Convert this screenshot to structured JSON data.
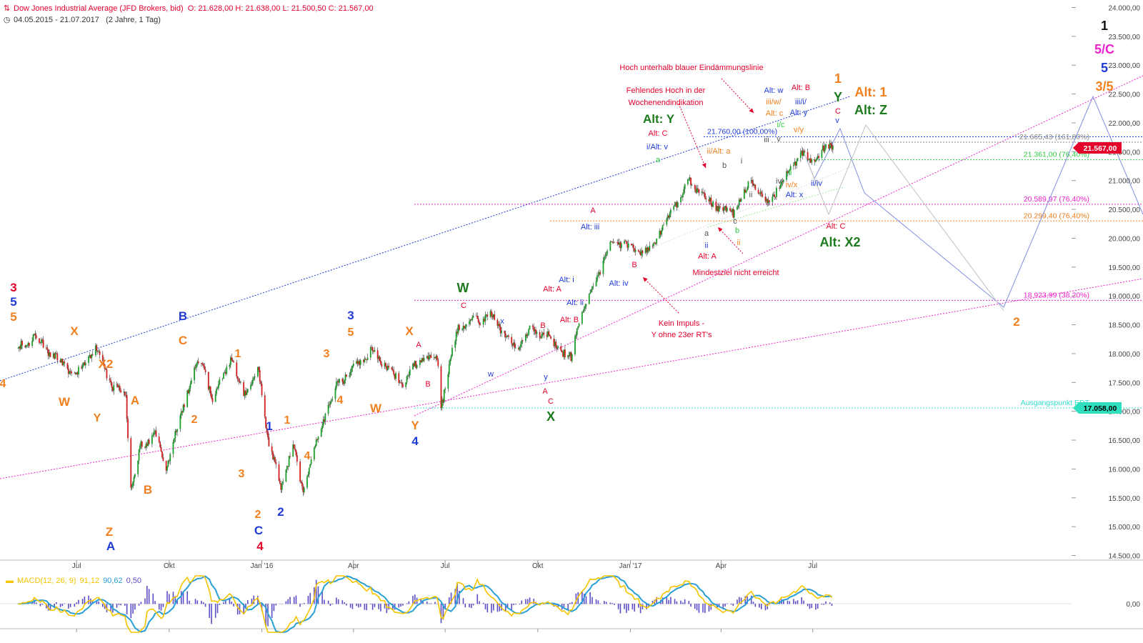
{
  "header": {
    "instrument": "Dow Jones Industrial Average (JFD Brokers, bid)",
    "ohlc": "O: 21.628,00  H: 21.638,00  L: 21.500,50  C: 21.567,00",
    "range": "04.05.2015 - 21.07.2017",
    "period": "(2 Jahre, 1 Tag)"
  },
  "macd": {
    "label": "MACD(12, 26, 9)",
    "macd_value": "91,12",
    "signal_value": "90,62",
    "hist_value": "0,50",
    "zero_label": "0,00",
    "colors": {
      "macd": "#f5c400",
      "signal": "#2a9fd6",
      "hist": "#5b4fc7"
    }
  },
  "colors": {
    "up": "#1b9e2a",
    "down": "#d11f1f",
    "red": "#e4002b",
    "orange": "#f07f1e",
    "blue": "#1f3bd6",
    "green": "#1e7a1e",
    "magenta": "#ee22cc",
    "lightgreen": "#2ecc40",
    "gray": "#555555",
    "cyan": "#33ddcc"
  },
  "price_tags": [
    {
      "label": "21.567,00",
      "bg": "#e4002b",
      "color": "#ffffff",
      "y": 21567
    },
    {
      "label": "17.058,00",
      "bg": "#2fe0c0",
      "color": "#000000",
      "y": 17058
    }
  ],
  "chart_data": {
    "type": "candlestick",
    "x_range": [
      "2015-05-04",
      "2017-07-21"
    ],
    "y_range": [
      14500,
      24000
    ],
    "y_ticks": [
      14500,
      15000,
      15500,
      16000,
      16500,
      17000,
      17500,
      18000,
      18500,
      19000,
      19500,
      20000,
      20500,
      21000,
      21500,
      22000,
      22500,
      23000,
      23500,
      24000
    ],
    "y_tick_labels": [
      "14.500,00",
      "15.000,00",
      "15.500,00",
      "16.000,00",
      "16.500,00",
      "17.000,00",
      "17.500,00",
      "18.000,00",
      "18.500,00",
      "19.000,00",
      "19.500,00",
      "20.000,00",
      "20.500,00",
      "21.000,00",
      "21.500,00",
      "22.000,00",
      "22.500,00",
      "23.000,00",
      "23.500,00",
      "24.000,00"
    ],
    "x_ticks": [
      "Jul",
      "Okt",
      "Jan '16",
      "Apr",
      "Jul",
      "Okt",
      "Jan '17",
      "Apr",
      "Jul"
    ],
    "x_tick_dates": [
      "2015-07-01",
      "2015-10-01",
      "2016-01-01",
      "2016-04-01",
      "2016-07-01",
      "2016-10-01",
      "2017-01-01",
      "2017-04-01",
      "2017-07-01"
    ],
    "price_anchors": [
      [
        "2015-05-04",
        18070
      ],
      [
        "2015-05-19",
        18300
      ],
      [
        "2015-06-10",
        17950
      ],
      [
        "2015-06-29",
        17600
      ],
      [
        "2015-07-20",
        18120
      ],
      [
        "2015-08-06",
        17400
      ],
      [
        "2015-08-19",
        17300
      ],
      [
        "2015-08-24",
        15650
      ],
      [
        "2015-09-03",
        16400
      ],
      [
        "2015-09-17",
        16600
      ],
      [
        "2015-09-28",
        16000
      ],
      [
        "2015-10-23",
        17600
      ],
      [
        "2015-11-03",
        17900
      ],
      [
        "2015-11-13",
        17200
      ],
      [
        "2015-12-01",
        17900
      ],
      [
        "2015-12-14",
        17300
      ],
      [
        "2015-12-29",
        17700
      ],
      [
        "2016-01-08",
        16400
      ],
      [
        "2016-01-20",
        15700
      ],
      [
        "2016-02-01",
        16450
      ],
      [
        "2016-02-11",
        15600
      ],
      [
        "2016-03-01",
        16800
      ],
      [
        "2016-03-17",
        17500
      ],
      [
        "2016-04-20",
        18050
      ],
      [
        "2016-05-19",
        17450
      ],
      [
        "2016-06-08",
        17950
      ],
      [
        "2016-06-23",
        17950
      ],
      [
        "2016-06-27",
        17100
      ],
      [
        "2016-07-14",
        18500
      ],
      [
        "2016-08-15",
        18650
      ],
      [
        "2016-09-09",
        18100
      ],
      [
        "2016-09-22",
        18400
      ],
      [
        "2016-10-10",
        18300
      ],
      [
        "2016-11-03",
        17900
      ],
      [
        "2016-11-09",
        18500
      ],
      [
        "2016-12-13",
        19950
      ],
      [
        "2017-01-19",
        19750
      ],
      [
        "2017-02-28",
        21000
      ],
      [
        "2017-03-22",
        20600
      ],
      [
        "2017-04-13",
        20450
      ],
      [
        "2017-05-01",
        21000
      ],
      [
        "2017-05-17",
        20600
      ],
      [
        "2017-06-19",
        21500
      ],
      [
        "2017-06-29",
        21300
      ],
      [
        "2017-07-19",
        21640
      ],
      [
        "2017-07-21",
        21567
      ]
    ],
    "fib_levels": [
      {
        "label": "21.760,00 (100,00%)",
        "y": 21760,
        "color": "#1f3bd6"
      },
      {
        "label": "21.665,43 (161,80%)",
        "y": 21665.43,
        "color": "#888888"
      },
      {
        "label": "21.361,00 (76,40%)",
        "y": 21361,
        "color": "#2ecc40"
      },
      {
        "label": "20.589,97 (76,40%)",
        "y": 20589.97,
        "color": "#ee22cc"
      },
      {
        "label": "20.299,40 (76,40%)",
        "y": 20299.4,
        "color": "#f07f1e"
      },
      {
        "label": "18.923,99 (38,20%)",
        "y": 18923.99,
        "color": "#ee22cc"
      },
      {
        "label": "Ausgangspunkt EDT",
        "y": 17058,
        "color": "#33ddcc"
      }
    ],
    "annotations": [
      {
        "t": "Hoch unterhalb blauer Eindämmungslinie",
        "c": "red"
      },
      {
        "t": "Fehlendes Hoch in der",
        "c": "red"
      },
      {
        "t": "Wochenendindikation",
        "c": "red"
      },
      {
        "t": "Mindestziel nicht erreicht",
        "c": "red"
      },
      {
        "t": "Kein Impuls -",
        "c": "red"
      },
      {
        "t": "Y ohne 23er RT's",
        "c": "red"
      }
    ],
    "wave_labels": [
      {
        "t": "3",
        "c": "red"
      },
      {
        "t": "5",
        "c": "blue"
      },
      {
        "t": "5",
        "c": "orange"
      },
      {
        "t": "4",
        "c": "orange"
      },
      {
        "t": "X",
        "c": "orange"
      },
      {
        "t": "W",
        "c": "orange"
      },
      {
        "t": "X2",
        "c": "orange"
      },
      {
        "t": "Y",
        "c": "orange"
      },
      {
        "t": "A",
        "c": "orange"
      },
      {
        "t": "B",
        "c": "orange"
      },
      {
        "t": "Z",
        "c": "orange"
      },
      {
        "t": "A",
        "c": "blue"
      },
      {
        "t": "B",
        "c": "blue"
      },
      {
        "t": "C",
        "c": "orange"
      },
      {
        "t": "1",
        "c": "orange"
      },
      {
        "t": "2",
        "c": "orange"
      },
      {
        "t": "3",
        "c": "orange"
      },
      {
        "t": "4",
        "c": "orange"
      },
      {
        "t": "5",
        "c": "orange"
      },
      {
        "t": "C",
        "c": "blue"
      },
      {
        "t": "4",
        "c": "red"
      },
      {
        "t": "1",
        "c": "blue"
      },
      {
        "t": "1",
        "c": "orange"
      },
      {
        "t": "2",
        "c": "blue"
      },
      {
        "t": "2",
        "c": "orange"
      },
      {
        "t": "3",
        "c": "orange"
      },
      {
        "t": "4",
        "c": "orange"
      },
      {
        "t": "3",
        "c": "blue"
      },
      {
        "t": "5",
        "c": "orange"
      },
      {
        "t": "W",
        "c": "orange"
      },
      {
        "t": "X",
        "c": "orange"
      },
      {
        "t": "Y",
        "c": "orange"
      },
      {
        "t": "4",
        "c": "blue"
      },
      {
        "t": "A",
        "c": "red"
      },
      {
        "t": "B",
        "c": "red"
      },
      {
        "t": "W",
        "c": "green"
      },
      {
        "t": "C",
        "c": "red"
      },
      {
        "t": "x",
        "c": "blue"
      },
      {
        "t": "w",
        "c": "blue"
      },
      {
        "t": "y",
        "c": "blue"
      },
      {
        "t": "B",
        "c": "red"
      },
      {
        "t": "A",
        "c": "red"
      },
      {
        "t": "C",
        "c": "red"
      },
      {
        "t": "X",
        "c": "green"
      },
      {
        "t": "Alt: A",
        "c": "red"
      },
      {
        "t": "Alt: B",
        "c": "red"
      },
      {
        "t": "Alt: i",
        "c": "blue"
      },
      {
        "t": "Alt: ii",
        "c": "blue"
      },
      {
        "t": "Alt: iii",
        "c": "blue"
      },
      {
        "t": "Alt: iv",
        "c": "blue"
      },
      {
        "t": "A",
        "c": "red"
      },
      {
        "t": "B",
        "c": "red"
      },
      {
        "t": "Alt: Y",
        "c": "green"
      },
      {
        "t": "Alt: C",
        "c": "red"
      },
      {
        "t": "i/Alt: v",
        "c": "blue"
      },
      {
        "t": "a",
        "c": "lightgreen"
      },
      {
        "t": "ii/Alt: a",
        "c": "orange"
      },
      {
        "t": "b",
        "c": "gray"
      },
      {
        "t": "a",
        "c": "gray"
      },
      {
        "t": "ii",
        "c": "blue"
      },
      {
        "t": "Alt: A",
        "c": "red"
      },
      {
        "t": "c",
        "c": "gray"
      },
      {
        "t": "b",
        "c": "lightgreen"
      },
      {
        "t": "ii",
        "c": "orange"
      },
      {
        "t": "i",
        "c": "gray"
      },
      {
        "t": "ii",
        "c": "gray"
      },
      {
        "t": "iii",
        "c": "gray"
      },
      {
        "t": "iv",
        "c": "gray"
      },
      {
        "t": "v",
        "c": "gray"
      },
      {
        "t": "ii",
        "c": "lightgreen"
      },
      {
        "t": "iv/x",
        "c": "orange"
      },
      {
        "t": "Alt: x",
        "c": "blue"
      },
      {
        "t": "Alt: w",
        "c": "blue"
      },
      {
        "t": "iii/w/",
        "c": "orange"
      },
      {
        "t": "Alt: c",
        "c": "orange"
      },
      {
        "t": "i/c",
        "c": "lightgreen"
      },
      {
        "t": "Alt: B",
        "c": "red"
      },
      {
        "t": "iii/i/",
        "c": "blue"
      },
      {
        "t": "Alt: y",
        "c": "blue"
      },
      {
        "t": "v/y",
        "c": "orange"
      },
      {
        "t": "1",
        "c": "orange"
      },
      {
        "t": "Y",
        "c": "green"
      },
      {
        "t": "C",
        "c": "red"
      },
      {
        "t": "v",
        "c": "blue"
      },
      {
        "t": "Alt: 1",
        "c": "orange"
      },
      {
        "t": "Alt: Z",
        "c": "green"
      },
      {
        "t": "ii/iv",
        "c": "blue"
      },
      {
        "t": "Alt: C",
        "c": "red"
      },
      {
        "t": "Alt: X2",
        "c": "green"
      },
      {
        "t": "1",
        "c": "black"
      },
      {
        "t": "5/C",
        "c": "magenta"
      },
      {
        "t": "5",
        "c": "blue"
      },
      {
        "t": "3/5",
        "c": "orange"
      },
      {
        "t": "2",
        "c": "orange"
      }
    ],
    "macd_series": {
      "values_at_end": {
        "macd": 91.12,
        "signal": 90.62,
        "histogram": 0.5
      }
    }
  }
}
